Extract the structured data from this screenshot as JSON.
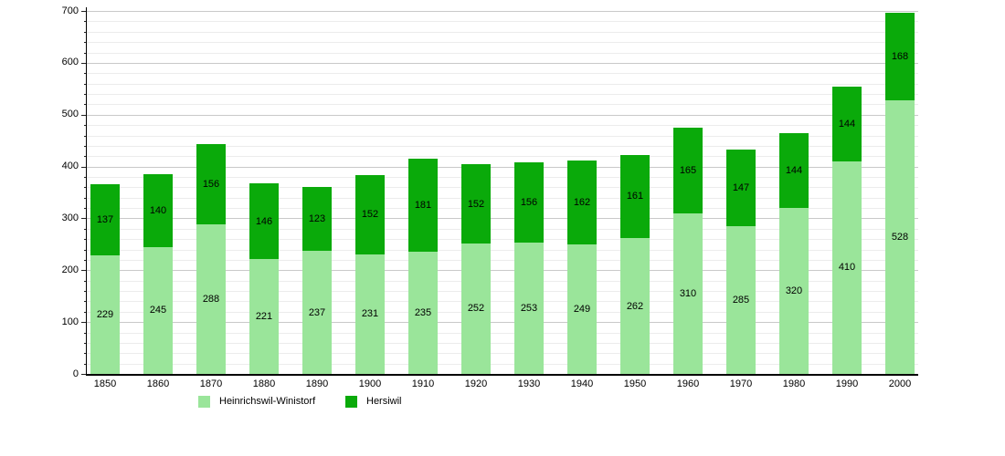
{
  "chart_data": {
    "type": "bar",
    "stacked": true,
    "title": "",
    "xlabel": "",
    "ylabel": "",
    "categories": [
      "1850",
      "1860",
      "1870",
      "1880",
      "1890",
      "1900",
      "1910",
      "1920",
      "1930",
      "1940",
      "1950",
      "1960",
      "1970",
      "1980",
      "1990",
      "2000"
    ],
    "series": [
      {
        "name": "Heinrichswil-Winistorf",
        "color": "#9ae59a",
        "values": [
          229,
          245,
          288,
          221,
          237,
          231,
          235,
          252,
          253,
          249,
          262,
          310,
          285,
          320,
          410,
          528
        ]
      },
      {
        "name": "Hersiwil",
        "color": "#0aaa0a",
        "values": [
          137,
          140,
          156,
          146,
          123,
          152,
          181,
          152,
          156,
          162,
          161,
          165,
          147,
          144,
          144,
          168
        ]
      }
    ],
    "ylim": [
      0,
      700
    ],
    "y_tick_labels": [
      "0",
      "100",
      "200",
      "300",
      "400",
      "500",
      "600",
      "700"
    ],
    "y_major_step": 100,
    "y_minor_step": 20,
    "grid": true,
    "value_labels": "centered-in-segment",
    "legend_position": "bottom-left"
  }
}
